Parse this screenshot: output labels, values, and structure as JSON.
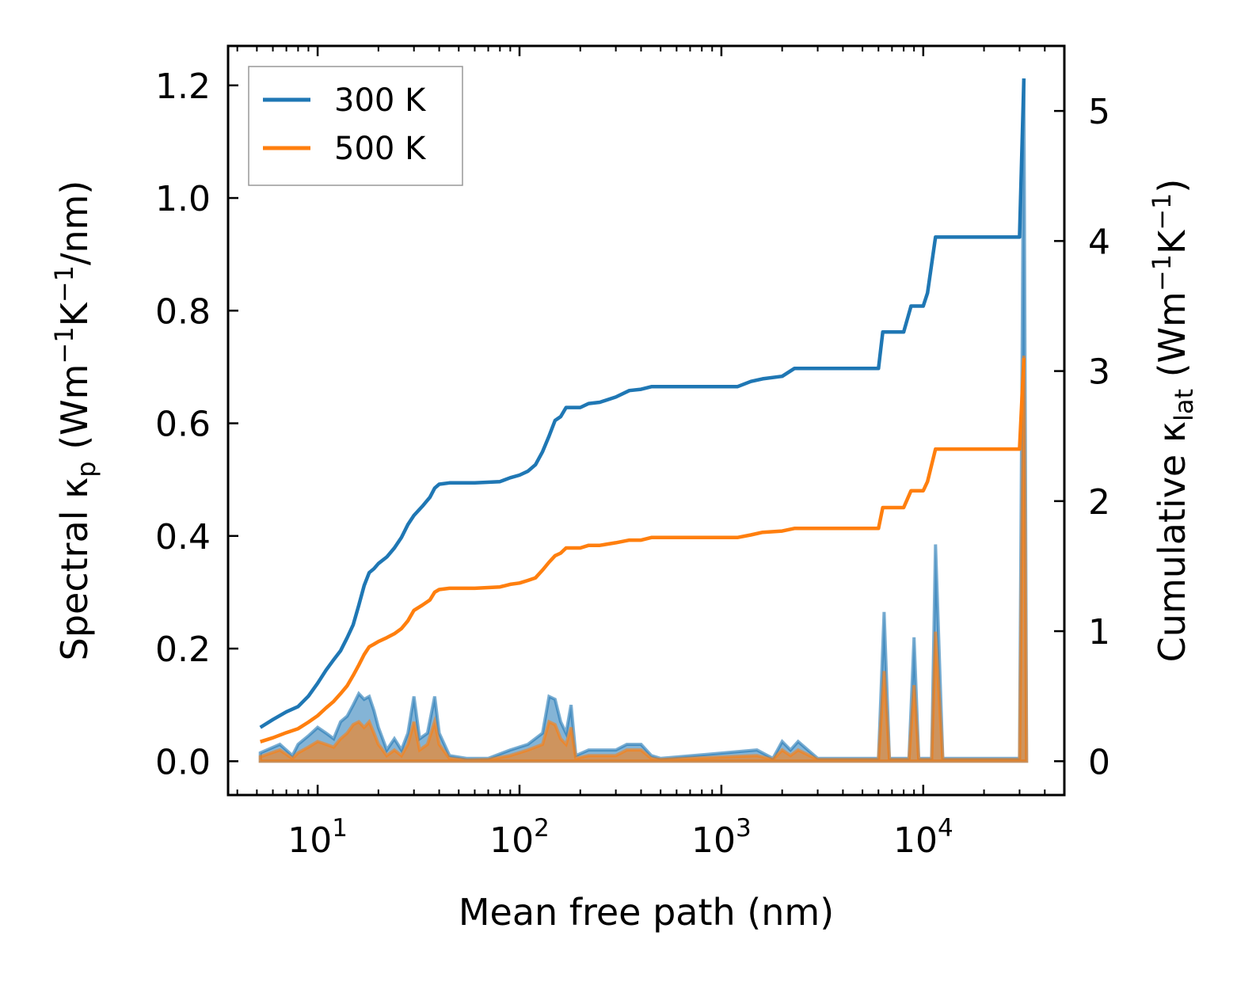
{
  "chart_data": {
    "type": "line",
    "xlabel": "Mean free path (nm)",
    "x_scale": "log",
    "xlim": [
      3.6,
      50000
    ],
    "x_ticks": [
      {
        "value": 10,
        "base": "10",
        "exp": "1"
      },
      {
        "value": 100,
        "base": "10",
        "exp": "2"
      },
      {
        "value": 1000,
        "base": "10",
        "exp": "3"
      },
      {
        "value": 10000,
        "base": "10",
        "exp": "4"
      }
    ],
    "ylabel_left": "Spectral κp (Wm−1K−1/nm)",
    "ylabel_left_parts": {
      "pre": "Spectral κ",
      "sub": "p",
      "mid1": " (Wm",
      "sup1": "−1",
      "mid2": "K",
      "sup2": "−1",
      "post": "/nm)"
    },
    "ylim_left": [
      -0.06,
      1.27
    ],
    "y_left_ticks": [
      "0.0",
      "0.2",
      "0.4",
      "0.6",
      "0.8",
      "1.0",
      "1.2"
    ],
    "ylabel_right": "Cumulative κlat (Wm−1K−1)",
    "ylabel_right_parts": {
      "pre": "Cumulative κ",
      "sub": "lat",
      "mid1": " (Wm",
      "sup1": "−1",
      "mid2": "K",
      "sup2": "−1",
      "post": ")"
    },
    "ylim_right": [
      -0.26,
      5.5
    ],
    "y_right_ticks": [
      "0",
      "1",
      "2",
      "3",
      "4",
      "5"
    ],
    "legend": {
      "position": "top-left",
      "entries": [
        "300 K",
        "500 K"
      ]
    },
    "series": [
      {
        "name": "300 K",
        "color": "#1f77b4",
        "cumulative": [
          [
            5.2,
            0.26
          ],
          [
            6,
            0.32
          ],
          [
            7,
            0.38
          ],
          [
            8,
            0.42
          ],
          [
            9,
            0.5
          ],
          [
            10,
            0.6
          ],
          [
            11,
            0.7
          ],
          [
            12,
            0.78
          ],
          [
            13,
            0.85
          ],
          [
            14,
            0.95
          ],
          [
            15,
            1.05
          ],
          [
            16,
            1.2
          ],
          [
            17,
            1.35
          ],
          [
            18,
            1.45
          ],
          [
            19,
            1.48
          ],
          [
            20,
            1.52
          ],
          [
            22,
            1.57
          ],
          [
            24,
            1.64
          ],
          [
            26,
            1.72
          ],
          [
            28,
            1.82
          ],
          [
            30,
            1.89
          ],
          [
            33,
            1.96
          ],
          [
            36,
            2.03
          ],
          [
            38,
            2.1
          ],
          [
            40,
            2.13
          ],
          [
            45,
            2.14
          ],
          [
            60,
            2.14
          ],
          [
            80,
            2.15
          ],
          [
            90,
            2.18
          ],
          [
            100,
            2.2
          ],
          [
            110,
            2.23
          ],
          [
            120,
            2.28
          ],
          [
            130,
            2.38
          ],
          [
            140,
            2.5
          ],
          [
            150,
            2.62
          ],
          [
            160,
            2.65
          ],
          [
            170,
            2.72
          ],
          [
            200,
            2.72
          ],
          [
            220,
            2.75
          ],
          [
            250,
            2.76
          ],
          [
            300,
            2.8
          ],
          [
            350,
            2.85
          ],
          [
            400,
            2.86
          ],
          [
            450,
            2.88
          ],
          [
            600,
            2.88
          ],
          [
            1200,
            2.88
          ],
          [
            1400,
            2.92
          ],
          [
            1600,
            2.94
          ],
          [
            2000,
            2.96
          ],
          [
            2300,
            3.02
          ],
          [
            6000,
            3.02
          ],
          [
            6300,
            3.3
          ],
          [
            8000,
            3.3
          ],
          [
            8700,
            3.5
          ],
          [
            10000,
            3.5
          ],
          [
            10500,
            3.6
          ],
          [
            11500,
            4.03
          ],
          [
            30000,
            4.03
          ],
          [
            31500,
            5.25
          ]
        ],
        "spectral": [
          [
            5.2,
            0.015
          ],
          [
            6.5,
            0.03
          ],
          [
            7.5,
            0.01
          ],
          [
            8,
            0.03
          ],
          [
            9,
            0.045
          ],
          [
            10,
            0.06
          ],
          [
            11,
            0.05
          ],
          [
            12,
            0.04
          ],
          [
            13,
            0.07
          ],
          [
            14,
            0.08
          ],
          [
            15,
            0.1
          ],
          [
            16,
            0.12
          ],
          [
            17,
            0.11
          ],
          [
            18,
            0.115
          ],
          [
            19,
            0.09
          ],
          [
            20,
            0.06
          ],
          [
            21,
            0.04
          ],
          [
            22,
            0.02
          ],
          [
            24,
            0.04
          ],
          [
            26,
            0.02
          ],
          [
            28,
            0.05
          ],
          [
            30,
            0.115
          ],
          [
            32,
            0.04
          ],
          [
            35,
            0.05
          ],
          [
            38,
            0.115
          ],
          [
            40,
            0.05
          ],
          [
            45,
            0.01
          ],
          [
            55,
            0.005
          ],
          [
            70,
            0.005
          ],
          [
            90,
            0.02
          ],
          [
            110,
            0.03
          ],
          [
            130,
            0.05
          ],
          [
            140,
            0.115
          ],
          [
            150,
            0.11
          ],
          [
            160,
            0.07
          ],
          [
            170,
            0.05
          ],
          [
            180,
            0.1
          ],
          [
            190,
            0.01
          ],
          [
            220,
            0.02
          ],
          [
            260,
            0.02
          ],
          [
            300,
            0.02
          ],
          [
            340,
            0.03
          ],
          [
            400,
            0.03
          ],
          [
            450,
            0.01
          ],
          [
            500,
            0.005
          ],
          [
            1500,
            0.02
          ],
          [
            1800,
            0.005
          ],
          [
            2000,
            0.035
          ],
          [
            2200,
            0.02
          ],
          [
            2400,
            0.035
          ],
          [
            3000,
            0.005
          ],
          [
            6000,
            0.005
          ],
          [
            6400,
            0.265
          ],
          [
            6800,
            0.005
          ],
          [
            8500,
            0.005
          ],
          [
            9000,
            0.22
          ],
          [
            9500,
            0.005
          ],
          [
            11000,
            0.005
          ],
          [
            11500,
            0.385
          ],
          [
            12500,
            0.005
          ],
          [
            30000,
            0.005
          ],
          [
            31500,
            1.21
          ],
          [
            32500,
            0.005
          ]
        ]
      },
      {
        "name": "500 K",
        "color": "#ff7f0e",
        "cumulative": [
          [
            5.2,
            0.15
          ],
          [
            6,
            0.18
          ],
          [
            7,
            0.22
          ],
          [
            8,
            0.25
          ],
          [
            9,
            0.3
          ],
          [
            10,
            0.35
          ],
          [
            11,
            0.41
          ],
          [
            12,
            0.46
          ],
          [
            13,
            0.52
          ],
          [
            14,
            0.58
          ],
          [
            15,
            0.66
          ],
          [
            16,
            0.74
          ],
          [
            17,
            0.82
          ],
          [
            18,
            0.88
          ],
          [
            19,
            0.9
          ],
          [
            20,
            0.92
          ],
          [
            22,
            0.95
          ],
          [
            24,
            0.98
          ],
          [
            26,
            1.02
          ],
          [
            28,
            1.08
          ],
          [
            30,
            1.16
          ],
          [
            33,
            1.2
          ],
          [
            36,
            1.24
          ],
          [
            38,
            1.3
          ],
          [
            40,
            1.32
          ],
          [
            45,
            1.33
          ],
          [
            60,
            1.33
          ],
          [
            80,
            1.34
          ],
          [
            90,
            1.36
          ],
          [
            100,
            1.37
          ],
          [
            110,
            1.39
          ],
          [
            120,
            1.41
          ],
          [
            130,
            1.47
          ],
          [
            140,
            1.53
          ],
          [
            150,
            1.58
          ],
          [
            160,
            1.6
          ],
          [
            170,
            1.64
          ],
          [
            200,
            1.64
          ],
          [
            220,
            1.66
          ],
          [
            250,
            1.66
          ],
          [
            300,
            1.68
          ],
          [
            350,
            1.7
          ],
          [
            400,
            1.7
          ],
          [
            450,
            1.72
          ],
          [
            600,
            1.72
          ],
          [
            1200,
            1.72
          ],
          [
            1400,
            1.74
          ],
          [
            1600,
            1.76
          ],
          [
            2000,
            1.77
          ],
          [
            2300,
            1.79
          ],
          [
            6000,
            1.79
          ],
          [
            6300,
            1.95
          ],
          [
            8000,
            1.95
          ],
          [
            8700,
            2.08
          ],
          [
            10000,
            2.08
          ],
          [
            10500,
            2.15
          ],
          [
            11500,
            2.4
          ],
          [
            30000,
            2.4
          ],
          [
            31500,
            3.1
          ]
        ],
        "spectral": [
          [
            5.2,
            0.008
          ],
          [
            6.5,
            0.02
          ],
          [
            7.5,
            0.005
          ],
          [
            8,
            0.015
          ],
          [
            9,
            0.025
          ],
          [
            10,
            0.035
          ],
          [
            11,
            0.03
          ],
          [
            12,
            0.025
          ],
          [
            13,
            0.04
          ],
          [
            14,
            0.05
          ],
          [
            15,
            0.065
          ],
          [
            16,
            0.07
          ],
          [
            17,
            0.06
          ],
          [
            18,
            0.07
          ],
          [
            19,
            0.05
          ],
          [
            20,
            0.03
          ],
          [
            21,
            0.02
          ],
          [
            22,
            0.01
          ],
          [
            24,
            0.02
          ],
          [
            26,
            0.01
          ],
          [
            28,
            0.03
          ],
          [
            30,
            0.07
          ],
          [
            32,
            0.02
          ],
          [
            35,
            0.03
          ],
          [
            38,
            0.07
          ],
          [
            40,
            0.03
          ],
          [
            45,
            0.005
          ],
          [
            55,
            0.002
          ],
          [
            70,
            0.003
          ],
          [
            90,
            0.01
          ],
          [
            110,
            0.02
          ],
          [
            130,
            0.03
          ],
          [
            140,
            0.07
          ],
          [
            150,
            0.065
          ],
          [
            160,
            0.04
          ],
          [
            170,
            0.03
          ],
          [
            180,
            0.06
          ],
          [
            190,
            0.005
          ],
          [
            220,
            0.01
          ],
          [
            260,
            0.01
          ],
          [
            300,
            0.01
          ],
          [
            340,
            0.02
          ],
          [
            400,
            0.02
          ],
          [
            450,
            0.005
          ],
          [
            500,
            0.003
          ],
          [
            1500,
            0.01
          ],
          [
            1800,
            0.003
          ],
          [
            2000,
            0.02
          ],
          [
            2200,
            0.01
          ],
          [
            2400,
            0.02
          ],
          [
            3000,
            0.003
          ],
          [
            6000,
            0.003
          ],
          [
            6400,
            0.16
          ],
          [
            6800,
            0.003
          ],
          [
            8500,
            0.003
          ],
          [
            9000,
            0.135
          ],
          [
            9500,
            0.003
          ],
          [
            11000,
            0.003
          ],
          [
            11500,
            0.23
          ],
          [
            12500,
            0.003
          ],
          [
            30000,
            0.003
          ],
          [
            31500,
            0.72
          ],
          [
            32500,
            0.003
          ]
        ]
      }
    ]
  }
}
